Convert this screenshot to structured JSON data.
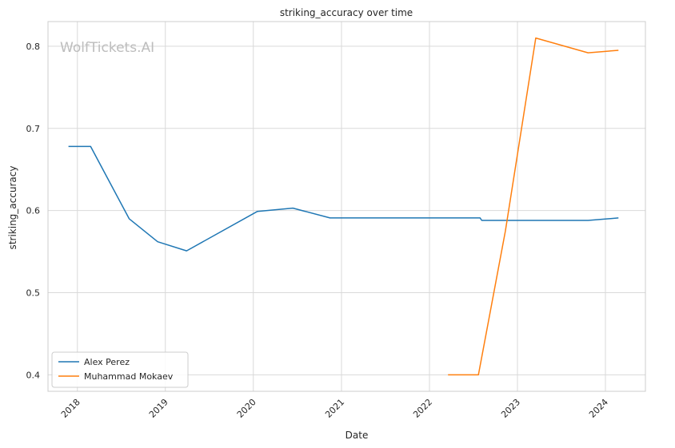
{
  "chart_data": {
    "type": "line",
    "title": "striking_accuracy over time",
    "xlabel": "Date",
    "ylabel": "striking_accuracy",
    "watermark": "WolfTickets.AI",
    "x_ticks": [
      "2018",
      "2019",
      "2020",
      "2021",
      "2022",
      "2023",
      "2024"
    ],
    "y_ticks": [
      "0.4",
      "0.5",
      "0.6",
      "0.7",
      "0.8"
    ],
    "xlim": [
      "2017-09-01",
      "2024-06-15"
    ],
    "ylim": [
      0.38,
      0.83
    ],
    "grid": true,
    "legend_position": "lower-left",
    "series": [
      {
        "name": "Alex Perez",
        "color": "#1f77b4",
        "points": [
          {
            "x": "2017-11-25",
            "y": 0.678
          },
          {
            "x": "2018-02-25",
            "y": 0.678
          },
          {
            "x": "2018-08-04",
            "y": 0.59
          },
          {
            "x": "2018-11-30",
            "y": 0.562
          },
          {
            "x": "2019-03-30",
            "y": 0.551
          },
          {
            "x": "2020-01-18",
            "y": 0.599
          },
          {
            "x": "2020-06-13",
            "y": 0.603
          },
          {
            "x": "2020-11-14",
            "y": 0.591
          },
          {
            "x": "2022-07-30",
            "y": 0.591
          },
          {
            "x": "2022-08-06",
            "y": 0.588
          },
          {
            "x": "2023-10-21",
            "y": 0.588
          },
          {
            "x": "2024-02-24",
            "y": 0.591
          }
        ]
      },
      {
        "name": "Muhammad Mokaev",
        "color": "#ff7f0e",
        "points": [
          {
            "x": "2022-03-19",
            "y": 0.4
          },
          {
            "x": "2022-07-23",
            "y": 0.4
          },
          {
            "x": "2022-11-12",
            "y": 0.575
          },
          {
            "x": "2023-03-18",
            "y": 0.81
          },
          {
            "x": "2023-10-21",
            "y": 0.792
          },
          {
            "x": "2024-02-24",
            "y": 0.795
          }
        ]
      }
    ]
  }
}
